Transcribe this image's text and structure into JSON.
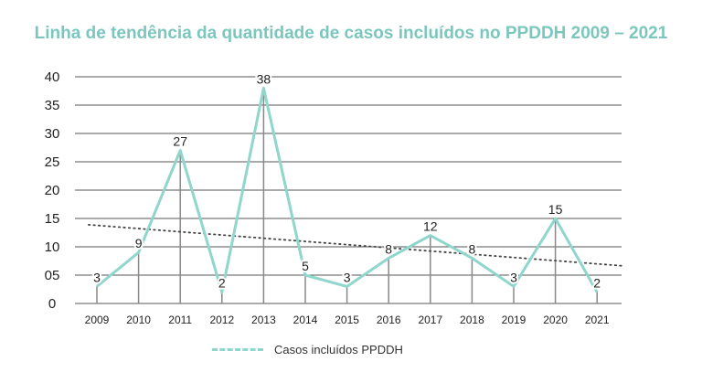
{
  "title": "Linha de tendência da quantidade de casos incluídos no PPDDH 2009 – 2021",
  "colors": {
    "title": "#7cc7bd",
    "series": "#8fd6cc",
    "grid": "#555555",
    "stem": "#888888",
    "trend": "#444444"
  },
  "chart_data": {
    "type": "line",
    "title": "Linha de tendência da quantidade de casos incluídos no PPDDH 2009 – 2021",
    "xlabel": "",
    "ylabel": "",
    "categories": [
      "2009",
      "2010",
      "2011",
      "2012",
      "2013",
      "2014",
      "2015",
      "2016",
      "2017",
      "2018",
      "2019",
      "2020",
      "2021"
    ],
    "y_ticks": [
      "0",
      "05",
      "10",
      "15",
      "20",
      "25",
      "30",
      "35",
      "40"
    ],
    "ylim": [
      0,
      40
    ],
    "grid": true,
    "series": [
      {
        "name": "Casos incluídos PPDDH",
        "values": [
          3,
          9,
          27,
          2,
          38,
          5,
          3,
          8,
          12,
          8,
          3,
          15,
          2
        ]
      }
    ],
    "trendline": {
      "style": "dotted",
      "linear": true
    },
    "legend": {
      "placement": "bottom",
      "label": "Casos incluídos PPDDH"
    }
  }
}
